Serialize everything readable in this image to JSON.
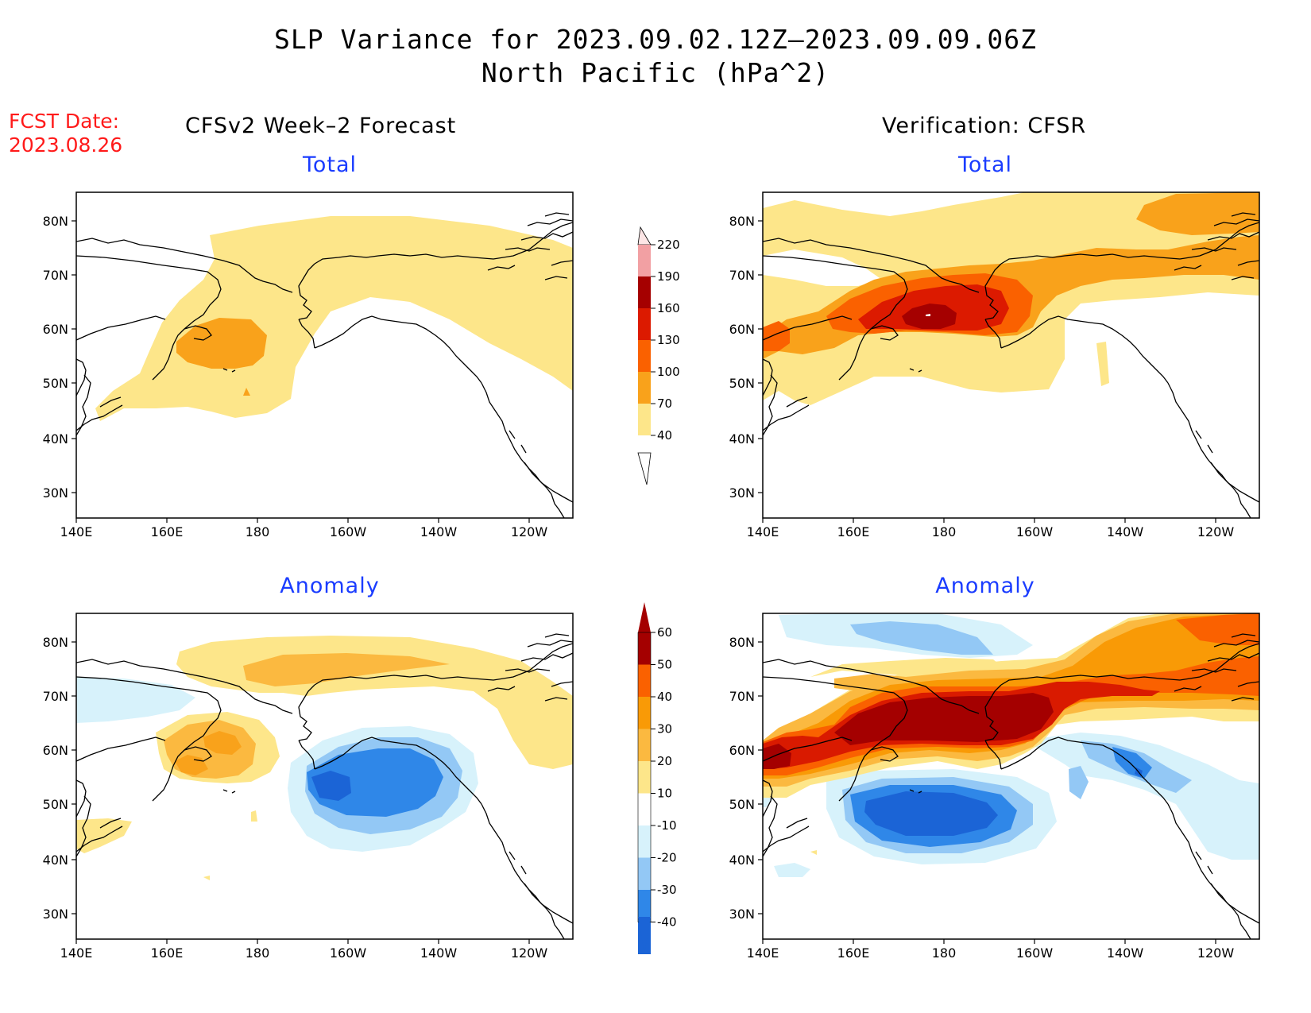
{
  "title": {
    "line1": "SLP Variance for 2023.09.02.12Z–2023.09.09.06Z",
    "line2": "North Pacific (hPa^2)"
  },
  "forecast_date": {
    "label": "FCST Date:",
    "value": "2023.08.26"
  },
  "columns": {
    "left": "CFSv2 Week–2 Forecast",
    "right": "Verification: CFSR"
  },
  "panels": {
    "top_left": "Total",
    "top_right": "Total",
    "bottom_left": "Anomaly",
    "bottom_right": "Anomaly"
  },
  "axes": {
    "lat_labels": [
      "80N",
      "70N",
      "60N",
      "50N",
      "40N",
      "30N"
    ],
    "lon_labels": [
      "140E",
      "160E",
      "180",
      "160W",
      "140W",
      "120W"
    ]
  },
  "colorbars": {
    "total": {
      "levels": [
        "40",
        "70",
        "100",
        "130",
        "160",
        "190",
        "220"
      ],
      "colors": [
        "#fde68a",
        "#f9a21b",
        "#fa6100",
        "#dc1a00",
        "#a50000",
        "#f2a0a3",
        "#fde6e6"
      ]
    },
    "anomaly": {
      "levels": [
        "-40",
        "-30",
        "-20",
        "-10",
        "10",
        "20",
        "30",
        "40",
        "50",
        "60"
      ],
      "colors": [
        "#1b64d6",
        "#2f87e8",
        "#93c8f5",
        "#d7f2fb",
        "#ffffff",
        "#fde68a",
        "#fbb940",
        "#f99a06",
        "#fa6100",
        "#d91a00",
        "#a40000"
      ]
    }
  },
  "colors": {
    "title_text": "#000000",
    "fcst_text": "#ff1a1a",
    "panel_title_text": "#1a3cff"
  }
}
